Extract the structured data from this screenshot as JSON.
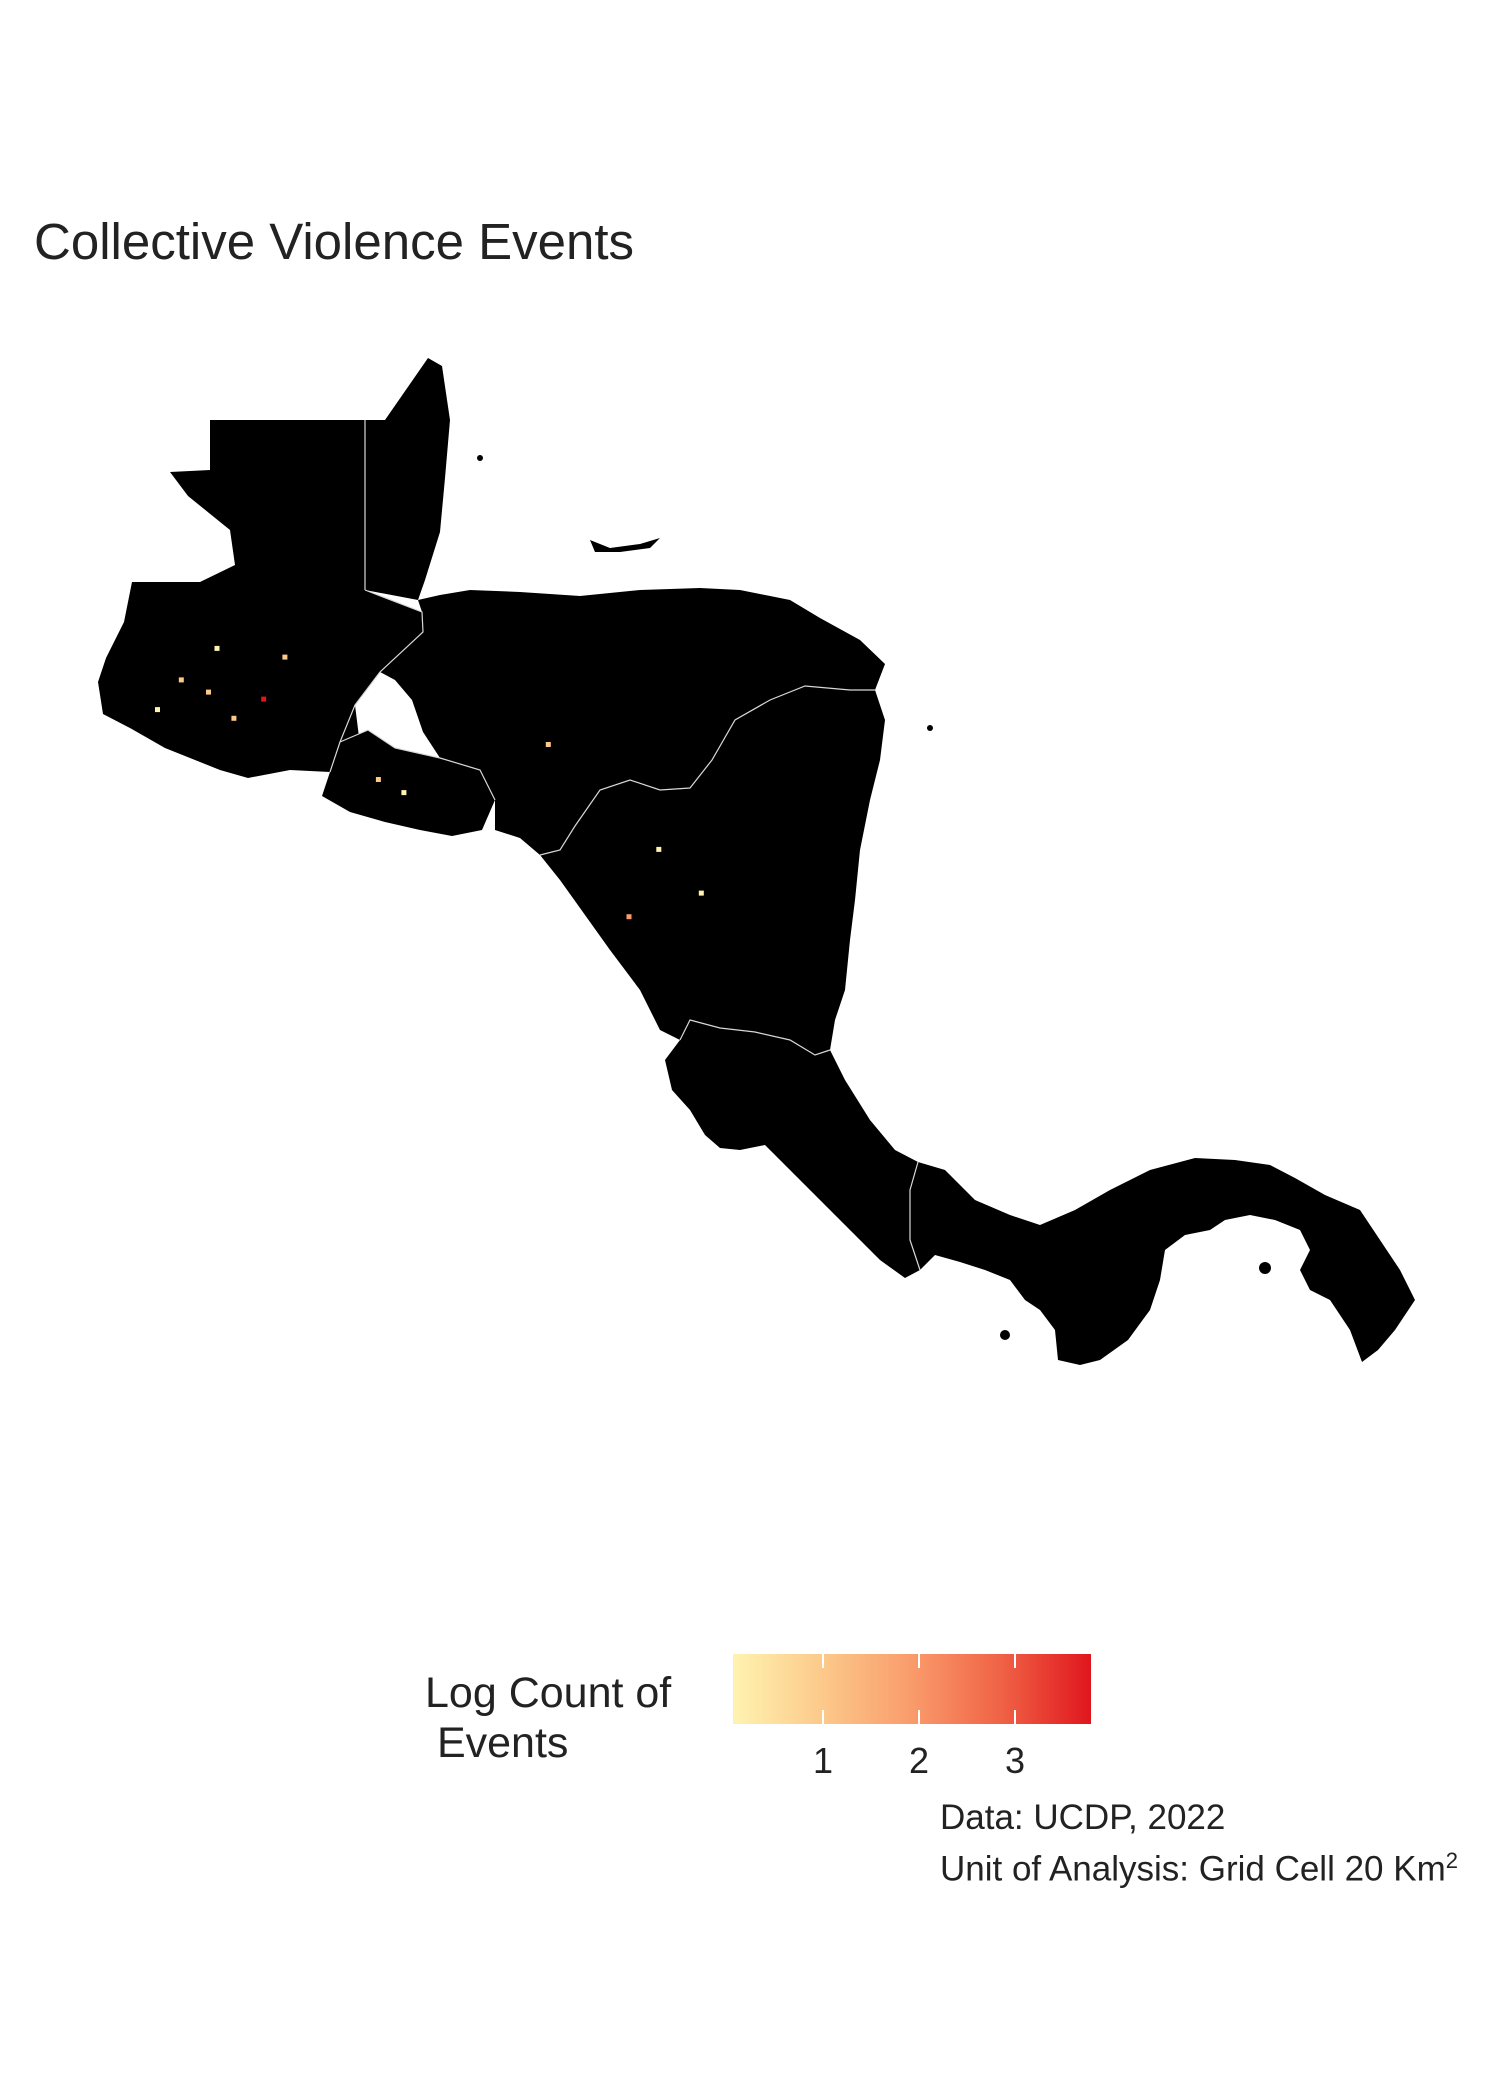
{
  "title": "Collective Violence Events",
  "legend": {
    "title_line1": "Log Count of",
    "title_line2": " Events",
    "ticks": [
      "1",
      "2",
      "3"
    ],
    "colors": [
      "#fff3b0",
      "#fcc98a",
      "#f99b6b",
      "#f06245",
      "#e0161d"
    ]
  },
  "caption": {
    "line1": "Data: UCDP, 2022",
    "line2": "Unit of Analysis: Grid Cell 20 Km",
    "superscript": "2"
  },
  "map": {
    "land_color": "#000000",
    "border_color": "#d8d8d8",
    "region": "Central America",
    "events": [
      {
        "lon": -90.55,
        "lat": 14.62,
        "log_count": 3.6
      },
      {
        "lon": -91.52,
        "lat": 14.84,
        "log_count": 1.3
      },
      {
        "lon": -91.8,
        "lat": 14.5,
        "log_count": 0.7
      },
      {
        "lon": -91.2,
        "lat": 14.7,
        "log_count": 0.9
      },
      {
        "lon": -90.9,
        "lat": 14.4,
        "log_count": 1.1
      },
      {
        "lon": -91.1,
        "lat": 15.2,
        "log_count": 0.6
      },
      {
        "lon": -90.3,
        "lat": 15.1,
        "log_count": 0.8
      },
      {
        "lon": -89.2,
        "lat": 13.7,
        "log_count": 1.4
      },
      {
        "lon": -88.9,
        "lat": 13.55,
        "log_count": 0.7
      },
      {
        "lon": -87.2,
        "lat": 14.1,
        "log_count": 1.2
      },
      {
        "lon": -86.25,
        "lat": 12.13,
        "log_count": 1.6
      },
      {
        "lon": -85.9,
        "lat": 12.9,
        "log_count": 0.6
      },
      {
        "lon": -85.4,
        "lat": 12.4,
        "log_count": 0.5
      }
    ]
  }
}
